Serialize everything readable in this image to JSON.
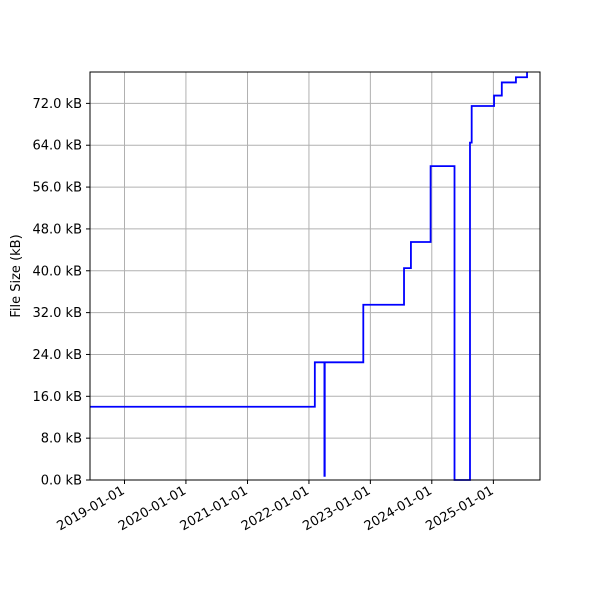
{
  "chart_data": {
    "type": "line",
    "title": "",
    "xlabel": "",
    "ylabel": "File Size (kB)",
    "x_type": "date",
    "xlim": [
      "2018-06-10",
      "2025-10-05"
    ],
    "ylim": [
      0,
      78
    ],
    "grid": true,
    "line_color": "#0000ff",
    "grid_color": "#b0b0b0",
    "x_tick_labels": [
      "2019-01-01",
      "2020-01-01",
      "2021-01-01",
      "2022-01-01",
      "2023-01-01",
      "2024-01-01",
      "2025-01-01"
    ],
    "y_ticks": [
      0,
      8,
      16,
      24,
      32,
      40,
      48,
      56,
      64,
      72
    ],
    "y_tick_labels": [
      "0.0 kB",
      "8.0 kB",
      "16.0 kB",
      "24.0 kB",
      "32.0 kB",
      "40.0 kB",
      "48.0 kB",
      "56.0 kB",
      "64.0 kB",
      "72.0 kB"
    ],
    "series": [
      {
        "step": "post",
        "points": [
          {
            "x": "2018-06-10",
            "y": 14.0
          },
          {
            "x": "2022-02-05",
            "y": 22.5
          },
          {
            "x": "2022-04-03",
            "y": 0.8
          },
          {
            "x": "2022-04-05",
            "y": 22.5
          },
          {
            "x": "2022-11-20",
            "y": 33.5
          },
          {
            "x": "2023-07-20",
            "y": 40.5
          },
          {
            "x": "2023-08-30",
            "y": 45.5
          },
          {
            "x": "2023-12-25",
            "y": 60.0
          },
          {
            "x": "2024-05-15",
            "y": 0.0
          },
          {
            "x": "2024-08-15",
            "y": 64.5
          },
          {
            "x": "2024-08-25",
            "y": 71.5
          },
          {
            "x": "2025-01-05",
            "y": 73.5
          },
          {
            "x": "2025-02-20",
            "y": 76.0
          },
          {
            "x": "2025-05-15",
            "y": 77.0
          },
          {
            "x": "2025-07-20",
            "y": 78.0
          }
        ]
      }
    ]
  }
}
